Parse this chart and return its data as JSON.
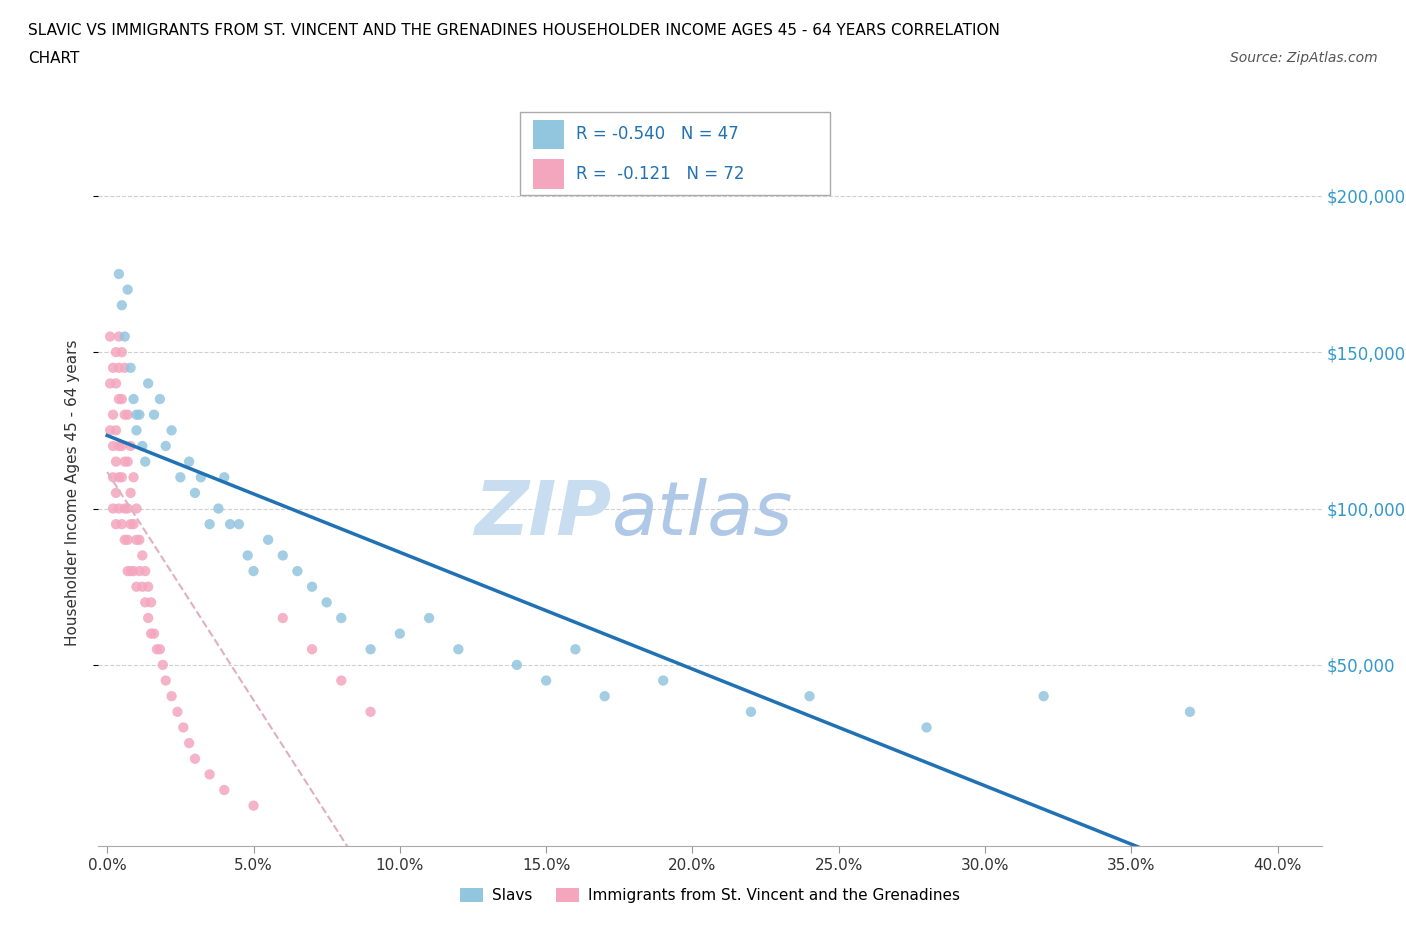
{
  "title_line1": "SLAVIC VS IMMIGRANTS FROM ST. VINCENT AND THE GRENADINES HOUSEHOLDER INCOME AGES 45 - 64 YEARS CORRELATION",
  "title_line2": "CHART",
  "source_text": "Source: ZipAtlas.com",
  "ylabel": "Householder Income Ages 45 - 64 years",
  "x_tick_labels": [
    "0.0%",
    "5.0%",
    "10.0%",
    "15.0%",
    "20.0%",
    "25.0%",
    "30.0%",
    "35.0%",
    "40.0%"
  ],
  "x_tick_values": [
    0.0,
    0.05,
    0.1,
    0.15,
    0.2,
    0.25,
    0.3,
    0.35,
    0.4
  ],
  "y_tick_labels": [
    "$50,000",
    "$100,000",
    "$150,000",
    "$200,000"
  ],
  "y_tick_values": [
    50000,
    100000,
    150000,
    200000
  ],
  "xlim": [
    -0.003,
    0.415
  ],
  "ylim": [
    -8000,
    218000
  ],
  "slavic_color": "#92c5de",
  "svgrenadines_color": "#f4a6be",
  "slavic_line_color": "#2171b5",
  "svgrenadines_line_color": "#de77ae",
  "R_slavic": -0.54,
  "N_slavic": 47,
  "R_svgrenadines": -0.121,
  "N_svgrenadines": 72,
  "legend_label1": "Slavs",
  "legend_label2": "Immigrants from St. Vincent and the Grenadines",
  "watermark_zip": "ZIP",
  "watermark_atlas": "atlas",
  "grid_color": "#d0d0d0",
  "slavic_points_x": [
    0.004,
    0.005,
    0.006,
    0.007,
    0.008,
    0.009,
    0.01,
    0.01,
    0.011,
    0.012,
    0.013,
    0.014,
    0.016,
    0.018,
    0.02,
    0.022,
    0.025,
    0.028,
    0.03,
    0.032,
    0.035,
    0.038,
    0.04,
    0.042,
    0.045,
    0.048,
    0.05,
    0.055,
    0.06,
    0.065,
    0.07,
    0.075,
    0.08,
    0.09,
    0.1,
    0.11,
    0.12,
    0.14,
    0.15,
    0.16,
    0.17,
    0.19,
    0.22,
    0.24,
    0.28,
    0.32,
    0.37
  ],
  "slavic_points_y": [
    175000,
    165000,
    155000,
    170000,
    145000,
    135000,
    130000,
    125000,
    130000,
    120000,
    115000,
    140000,
    130000,
    135000,
    120000,
    125000,
    110000,
    115000,
    105000,
    110000,
    95000,
    100000,
    110000,
    95000,
    95000,
    85000,
    80000,
    90000,
    85000,
    80000,
    75000,
    70000,
    65000,
    55000,
    60000,
    65000,
    55000,
    50000,
    45000,
    55000,
    40000,
    45000,
    35000,
    40000,
    30000,
    40000,
    35000
  ],
  "svgrenadines_points_x": [
    0.001,
    0.001,
    0.001,
    0.002,
    0.002,
    0.002,
    0.002,
    0.002,
    0.003,
    0.003,
    0.003,
    0.003,
    0.003,
    0.003,
    0.004,
    0.004,
    0.004,
    0.004,
    0.004,
    0.004,
    0.005,
    0.005,
    0.005,
    0.005,
    0.005,
    0.006,
    0.006,
    0.006,
    0.006,
    0.006,
    0.007,
    0.007,
    0.007,
    0.007,
    0.007,
    0.008,
    0.008,
    0.008,
    0.008,
    0.009,
    0.009,
    0.009,
    0.01,
    0.01,
    0.01,
    0.011,
    0.011,
    0.012,
    0.012,
    0.013,
    0.013,
    0.014,
    0.014,
    0.015,
    0.015,
    0.016,
    0.017,
    0.018,
    0.019,
    0.02,
    0.022,
    0.024,
    0.026,
    0.028,
    0.03,
    0.035,
    0.04,
    0.05,
    0.06,
    0.07,
    0.08,
    0.09
  ],
  "svgrenadines_points_y": [
    155000,
    140000,
    125000,
    145000,
    130000,
    120000,
    110000,
    100000,
    150000,
    140000,
    125000,
    115000,
    105000,
    95000,
    155000,
    145000,
    135000,
    120000,
    110000,
    100000,
    150000,
    135000,
    120000,
    110000,
    95000,
    145000,
    130000,
    115000,
    100000,
    90000,
    130000,
    115000,
    100000,
    90000,
    80000,
    120000,
    105000,
    95000,
    80000,
    110000,
    95000,
    80000,
    100000,
    90000,
    75000,
    90000,
    80000,
    85000,
    75000,
    80000,
    70000,
    75000,
    65000,
    70000,
    60000,
    60000,
    55000,
    55000,
    50000,
    45000,
    40000,
    35000,
    30000,
    25000,
    20000,
    15000,
    10000,
    5000,
    65000,
    55000,
    45000,
    35000
  ]
}
